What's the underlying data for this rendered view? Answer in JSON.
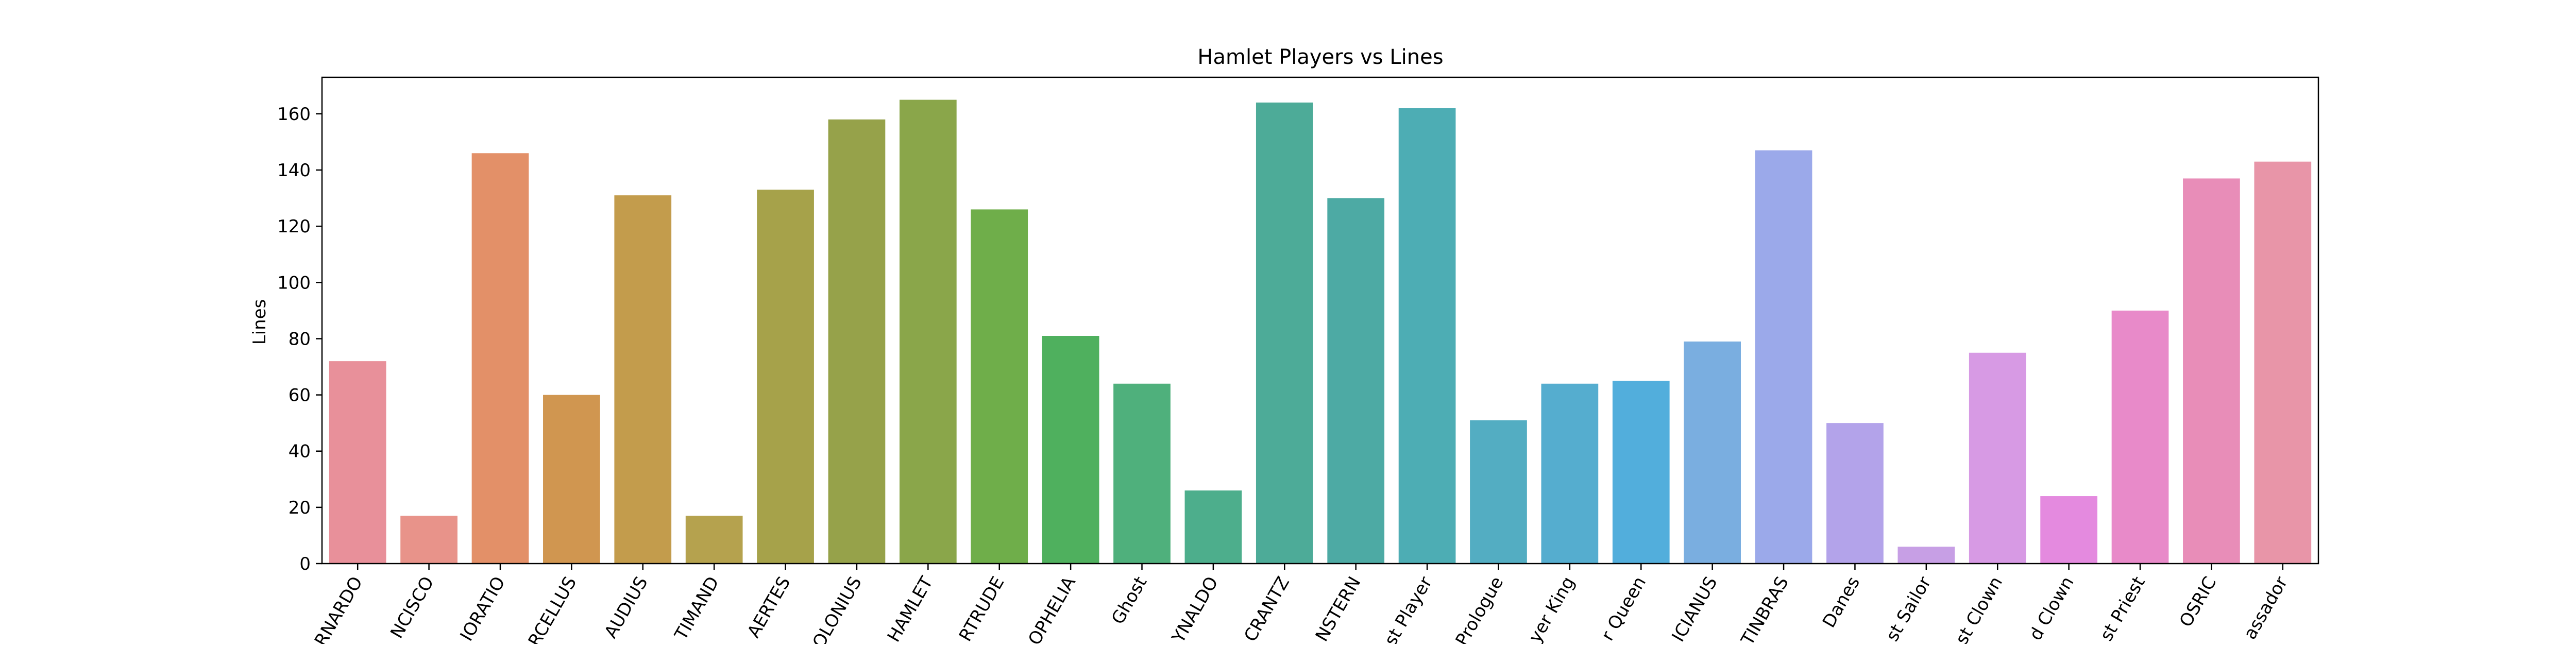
{
  "chart_data": {
    "type": "bar",
    "title": "Hamlet Players vs Lines",
    "xlabel": "",
    "ylabel": "Lines",
    "ylim": [
      0,
      173
    ],
    "yticks": [
      0,
      20,
      40,
      60,
      80,
      100,
      120,
      140,
      160
    ],
    "grid": false,
    "categories": [
      "BERNARDO",
      "FRANCISCO",
      "HORATIO",
      "MARCELLUS",
      "KING CLAUDIUS",
      "VOLTIMAND",
      "LAERTES",
      "LORD POLONIUS",
      "HAMLET",
      "QUEEN GERTRUDE",
      "OPHELIA",
      "Ghost",
      "REYNALDO",
      "ROSENCRANTZ",
      "GUILDENSTERN",
      "First Player",
      "Prologue",
      "Player King",
      "Player Queen",
      "LUCIANUS",
      "PRINCE FORTINBRAS",
      "Danes",
      "First Sailor",
      "First Clown",
      "Second Clown",
      "First Priest",
      "OSRIC",
      "First Ambassador"
    ],
    "tick_labels": [
      "RNARDO",
      "NCISCO",
      "IORATIO",
      "RCELLUS",
      "AUDIUS",
      "TIMAND",
      "AERTES",
      "OLONIUS",
      "HAMLET",
      "RTRUDE",
      "OPHELIA",
      "Ghost",
      "YNALDO",
      "CRANTZ",
      "NSTERN",
      "st Player",
      "Prologue",
      "yer King",
      "r Queen",
      "ICIANUS",
      "TINBRAS",
      "Danes",
      "st Sailor",
      "st Clown",
      "d Clown",
      "st Priest",
      "OSRIC",
      "assador"
    ],
    "values": [
      72,
      17,
      146,
      60,
      131,
      17,
      133,
      158,
      165,
      126,
      81,
      64,
      26,
      164,
      130,
      162,
      51,
      64,
      65,
      79,
      147,
      50,
      6,
      75,
      24,
      90,
      137,
      143
    ],
    "colors": [
      "#e8909a",
      "#e8938a",
      "#e39068",
      "#d09650",
      "#c39c4c",
      "#b5a24e",
      "#a6a24a",
      "#96a24a",
      "#8aa64a",
      "#6fae4a",
      "#4fb05e",
      "#4fb07c",
      "#4dae8c",
      "#4dab98",
      "#4daaa4",
      "#4dadb4",
      "#53adc2",
      "#55adcf",
      "#52aedc",
      "#7aaee0",
      "#9ba9ea",
      "#b3a3ea",
      "#c79fe5",
      "#d79ae4",
      "#e48adf",
      "#e88ac9",
      "#e88db8",
      "#e895a8"
    ]
  }
}
